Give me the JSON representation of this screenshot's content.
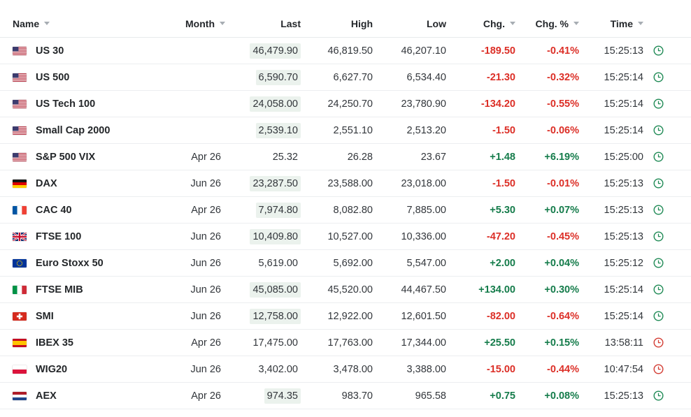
{
  "table": {
    "header": {
      "columns": [
        {
          "key": "name",
          "label": "Name",
          "sortable": true,
          "align": "left"
        },
        {
          "key": "month",
          "label": "Month",
          "sortable": true,
          "align": "right"
        },
        {
          "key": "last",
          "label": "Last",
          "sortable": false,
          "align": "right"
        },
        {
          "key": "high",
          "label": "High",
          "sortable": false,
          "align": "right"
        },
        {
          "key": "low",
          "label": "Low",
          "sortable": false,
          "align": "right"
        },
        {
          "key": "chg",
          "label": "Chg.",
          "sortable": true,
          "align": "right"
        },
        {
          "key": "chg_pct",
          "label": "Chg. %",
          "sortable": true,
          "align": "right"
        },
        {
          "key": "time",
          "label": "Time",
          "sortable": true,
          "align": "right"
        }
      ]
    },
    "rows": [
      {
        "flag": "us",
        "name": "US 30",
        "month": "",
        "last": "46,479.90",
        "last_flash": true,
        "high": "46,819.50",
        "low": "46,207.10",
        "chg": "-189.50",
        "chg_pct": "-0.41%",
        "direction": "down",
        "time": "15:25:13",
        "clock": "green"
      },
      {
        "flag": "us",
        "name": "US 500",
        "month": "",
        "last": "6,590.70",
        "last_flash": true,
        "high": "6,627.70",
        "low": "6,534.40",
        "chg": "-21.30",
        "chg_pct": "-0.32%",
        "direction": "down",
        "time": "15:25:14",
        "clock": "green"
      },
      {
        "flag": "us",
        "name": "US Tech 100",
        "month": "",
        "last": "24,058.00",
        "last_flash": true,
        "high": "24,250.70",
        "low": "23,780.90",
        "chg": "-134.20",
        "chg_pct": "-0.55%",
        "direction": "down",
        "time": "15:25:14",
        "clock": "green"
      },
      {
        "flag": "us",
        "name": "Small Cap 2000",
        "month": "",
        "last": "2,539.10",
        "last_flash": true,
        "high": "2,551.10",
        "low": "2,513.20",
        "chg": "-1.50",
        "chg_pct": "-0.06%",
        "direction": "down",
        "time": "15:25:14",
        "clock": "green"
      },
      {
        "flag": "us",
        "name": "S&P 500 VIX",
        "month": "Apr 26",
        "last": "25.32",
        "last_flash": false,
        "high": "26.28",
        "low": "23.67",
        "chg": "+1.48",
        "chg_pct": "+6.19%",
        "direction": "up",
        "time": "15:25:00",
        "clock": "green"
      },
      {
        "flag": "de",
        "name": "DAX",
        "month": "Jun 26",
        "last": "23,287.50",
        "last_flash": true,
        "high": "23,588.00",
        "low": "23,018.00",
        "chg": "-1.50",
        "chg_pct": "-0.01%",
        "direction": "down",
        "time": "15:25:13",
        "clock": "green"
      },
      {
        "flag": "fr",
        "name": "CAC 40",
        "month": "Apr 26",
        "last": "7,974.80",
        "last_flash": true,
        "high": "8,082.80",
        "low": "7,885.00",
        "chg": "+5.30",
        "chg_pct": "+0.07%",
        "direction": "up",
        "time": "15:25:13",
        "clock": "green"
      },
      {
        "flag": "gb",
        "name": "FTSE 100",
        "month": "Jun 26",
        "last": "10,409.80",
        "last_flash": true,
        "high": "10,527.00",
        "low": "10,336.00",
        "chg": "-47.20",
        "chg_pct": "-0.45%",
        "direction": "down",
        "time": "15:25:13",
        "clock": "green"
      },
      {
        "flag": "eu",
        "name": "Euro Stoxx 50",
        "month": "Jun 26",
        "last": "5,619.00",
        "last_flash": false,
        "high": "5,692.00",
        "low": "5,547.00",
        "chg": "+2.00",
        "chg_pct": "+0.04%",
        "direction": "up",
        "time": "15:25:12",
        "clock": "green"
      },
      {
        "flag": "it",
        "name": "FTSE MIB",
        "month": "Jun 26",
        "last": "45,085.00",
        "last_flash": true,
        "high": "45,520.00",
        "low": "44,467.50",
        "chg": "+134.00",
        "chg_pct": "+0.30%",
        "direction": "up",
        "time": "15:25:14",
        "clock": "green"
      },
      {
        "flag": "ch",
        "name": "SMI",
        "month": "Jun 26",
        "last": "12,758.00",
        "last_flash": true,
        "high": "12,922.00",
        "low": "12,601.50",
        "chg": "-82.00",
        "chg_pct": "-0.64%",
        "direction": "down",
        "time": "15:25:14",
        "clock": "green"
      },
      {
        "flag": "es",
        "name": "IBEX 35",
        "month": "Apr 26",
        "last": "17,475.00",
        "last_flash": false,
        "high": "17,763.00",
        "low": "17,344.00",
        "chg": "+25.50",
        "chg_pct": "+0.15%",
        "direction": "up",
        "time": "13:58:11",
        "clock": "red"
      },
      {
        "flag": "pl",
        "name": "WIG20",
        "month": "Jun 26",
        "last": "3,402.00",
        "last_flash": false,
        "high": "3,478.00",
        "low": "3,388.00",
        "chg": "-15.00",
        "chg_pct": "-0.44%",
        "direction": "down",
        "time": "10:47:54",
        "clock": "red"
      },
      {
        "flag": "nl",
        "name": "AEX",
        "month": "Apr 26",
        "last": "974.35",
        "last_flash": true,
        "high": "983.70",
        "low": "965.58",
        "chg": "+0.75",
        "chg_pct": "+0.08%",
        "direction": "up",
        "time": "15:25:13",
        "clock": "green"
      }
    ],
    "colors": {
      "positive": "#157c4b",
      "negative": "#dc2f27",
      "clock_open": "#1f8a55",
      "clock_closed": "#d33c33",
      "last_flash_bg": "#ebf2ed",
      "row_border": "#eceef0"
    }
  }
}
